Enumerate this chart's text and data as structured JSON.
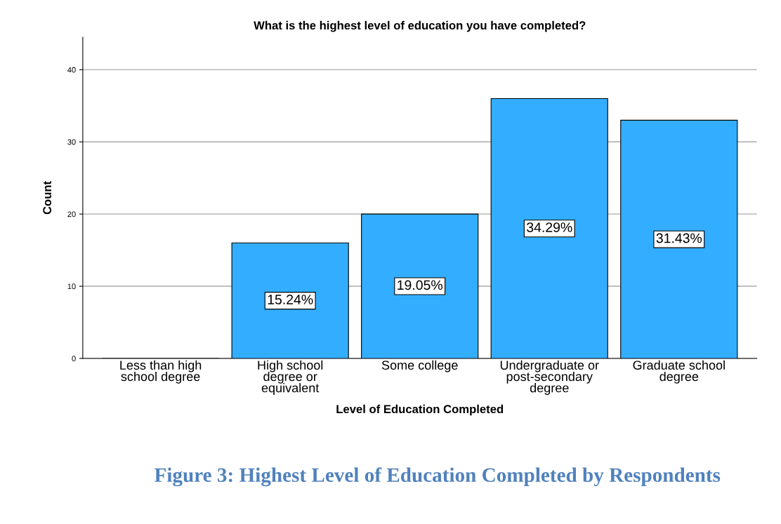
{
  "chart_data": {
    "type": "bar",
    "title": "What is the highest level of education you have completed?",
    "xlabel": "Level of Education Completed",
    "ylabel": "Count",
    "categories": [
      "Less than high\nschool degree",
      "High school\ndegree or\nequivalent",
      "Some college",
      "Undergraduate or\npost-secondary\ndegree",
      "Graduate school\ndegree"
    ],
    "values": [
      0,
      16,
      20,
      36,
      33
    ],
    "color": "#33adff",
    "ylim": [
      0,
      44.5
    ],
    "yticks": [
      0,
      10,
      20,
      30,
      40
    ],
    "grid": "y",
    "legend": false,
    "annotations": [
      "15.24%",
      "19.05%",
      "34.29%",
      "31.43%",
      "Figure 3: Highest Level of Education Completed by Respondents"
    ]
  }
}
